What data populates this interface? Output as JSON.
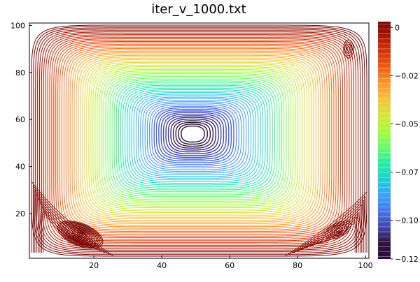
{
  "chart_data": {
    "type": "contour",
    "title": "iter_v_1000.txt",
    "xlabel": "",
    "ylabel": "",
    "xlim": [
      1,
      101
    ],
    "ylim": [
      1,
      101
    ],
    "x_ticks": [
      20,
      40,
      60,
      80,
      100
    ],
    "y_ticks": [
      20,
      40,
      60,
      80,
      100
    ],
    "colorbar": {
      "range": [
        -0.12,
        0.003
      ],
      "ticks": [
        0,
        -0.025,
        -0.05,
        -0.075,
        -0.1,
        -0.12
      ],
      "tick_labels": [
        "0",
        "−0.02",
        "−0.05",
        "−0.07",
        "−0.10",
        "−0.12"
      ],
      "colormap": [
        "#2a0f3a",
        "#30123b",
        "#4145ab",
        "#4675ed",
        "#39a2fc",
        "#1bcfd4",
        "#24eca6",
        "#61fc6c",
        "#a4fc3b",
        "#d1e834",
        "#f3c63a",
        "#fe9b2d",
        "#f36315",
        "#d93806",
        "#b11901",
        "#7a0403"
      ]
    },
    "primary_vortex": {
      "center": [
        49,
        54
      ],
      "min_value": -0.12
    },
    "secondary_vortices": [
      {
        "location": "bottom-left",
        "center": [
          16,
          11
        ]
      },
      {
        "location": "bottom-right",
        "center": [
          92,
          13
        ]
      },
      {
        "location": "top-right",
        "center": [
          95,
          90
        ]
      }
    ],
    "grid": false,
    "legend": "colorbar-right"
  }
}
